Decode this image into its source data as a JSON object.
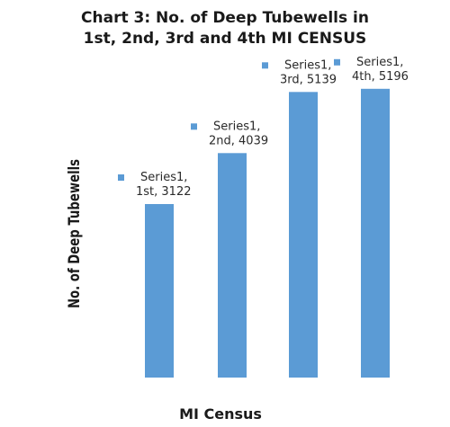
{
  "chart_data": {
    "type": "bar",
    "title_lines": [
      "Chart 3: No. of Deep Tubewells in",
      "1st, 2nd, 3rd and 4th MI CENSUS"
    ],
    "xlabel": "MI Census",
    "ylabel": "No. of Deep Tubewells",
    "categories": [
      "1st",
      "2nd",
      "3rd",
      "4th"
    ],
    "series": [
      {
        "name": "Series1",
        "values": [
          3122,
          4039,
          5139,
          5196
        ]
      }
    ],
    "data_labels": [
      {
        "line1": "Series1,",
        "line2": "1st, 3122"
      },
      {
        "line1": "Series1,",
        "line2": "2nd, 4039"
      },
      {
        "line1": "Series1,",
        "line2": "3rd, 5139"
      },
      {
        "line1": "Series1,",
        "line2": "4th, 5196"
      }
    ],
    "ylim": [
      0,
      5500
    ],
    "grid": false,
    "legend": "none",
    "colors": {
      "bar": "#5b9bd5",
      "text": "#1a1a1a"
    }
  }
}
